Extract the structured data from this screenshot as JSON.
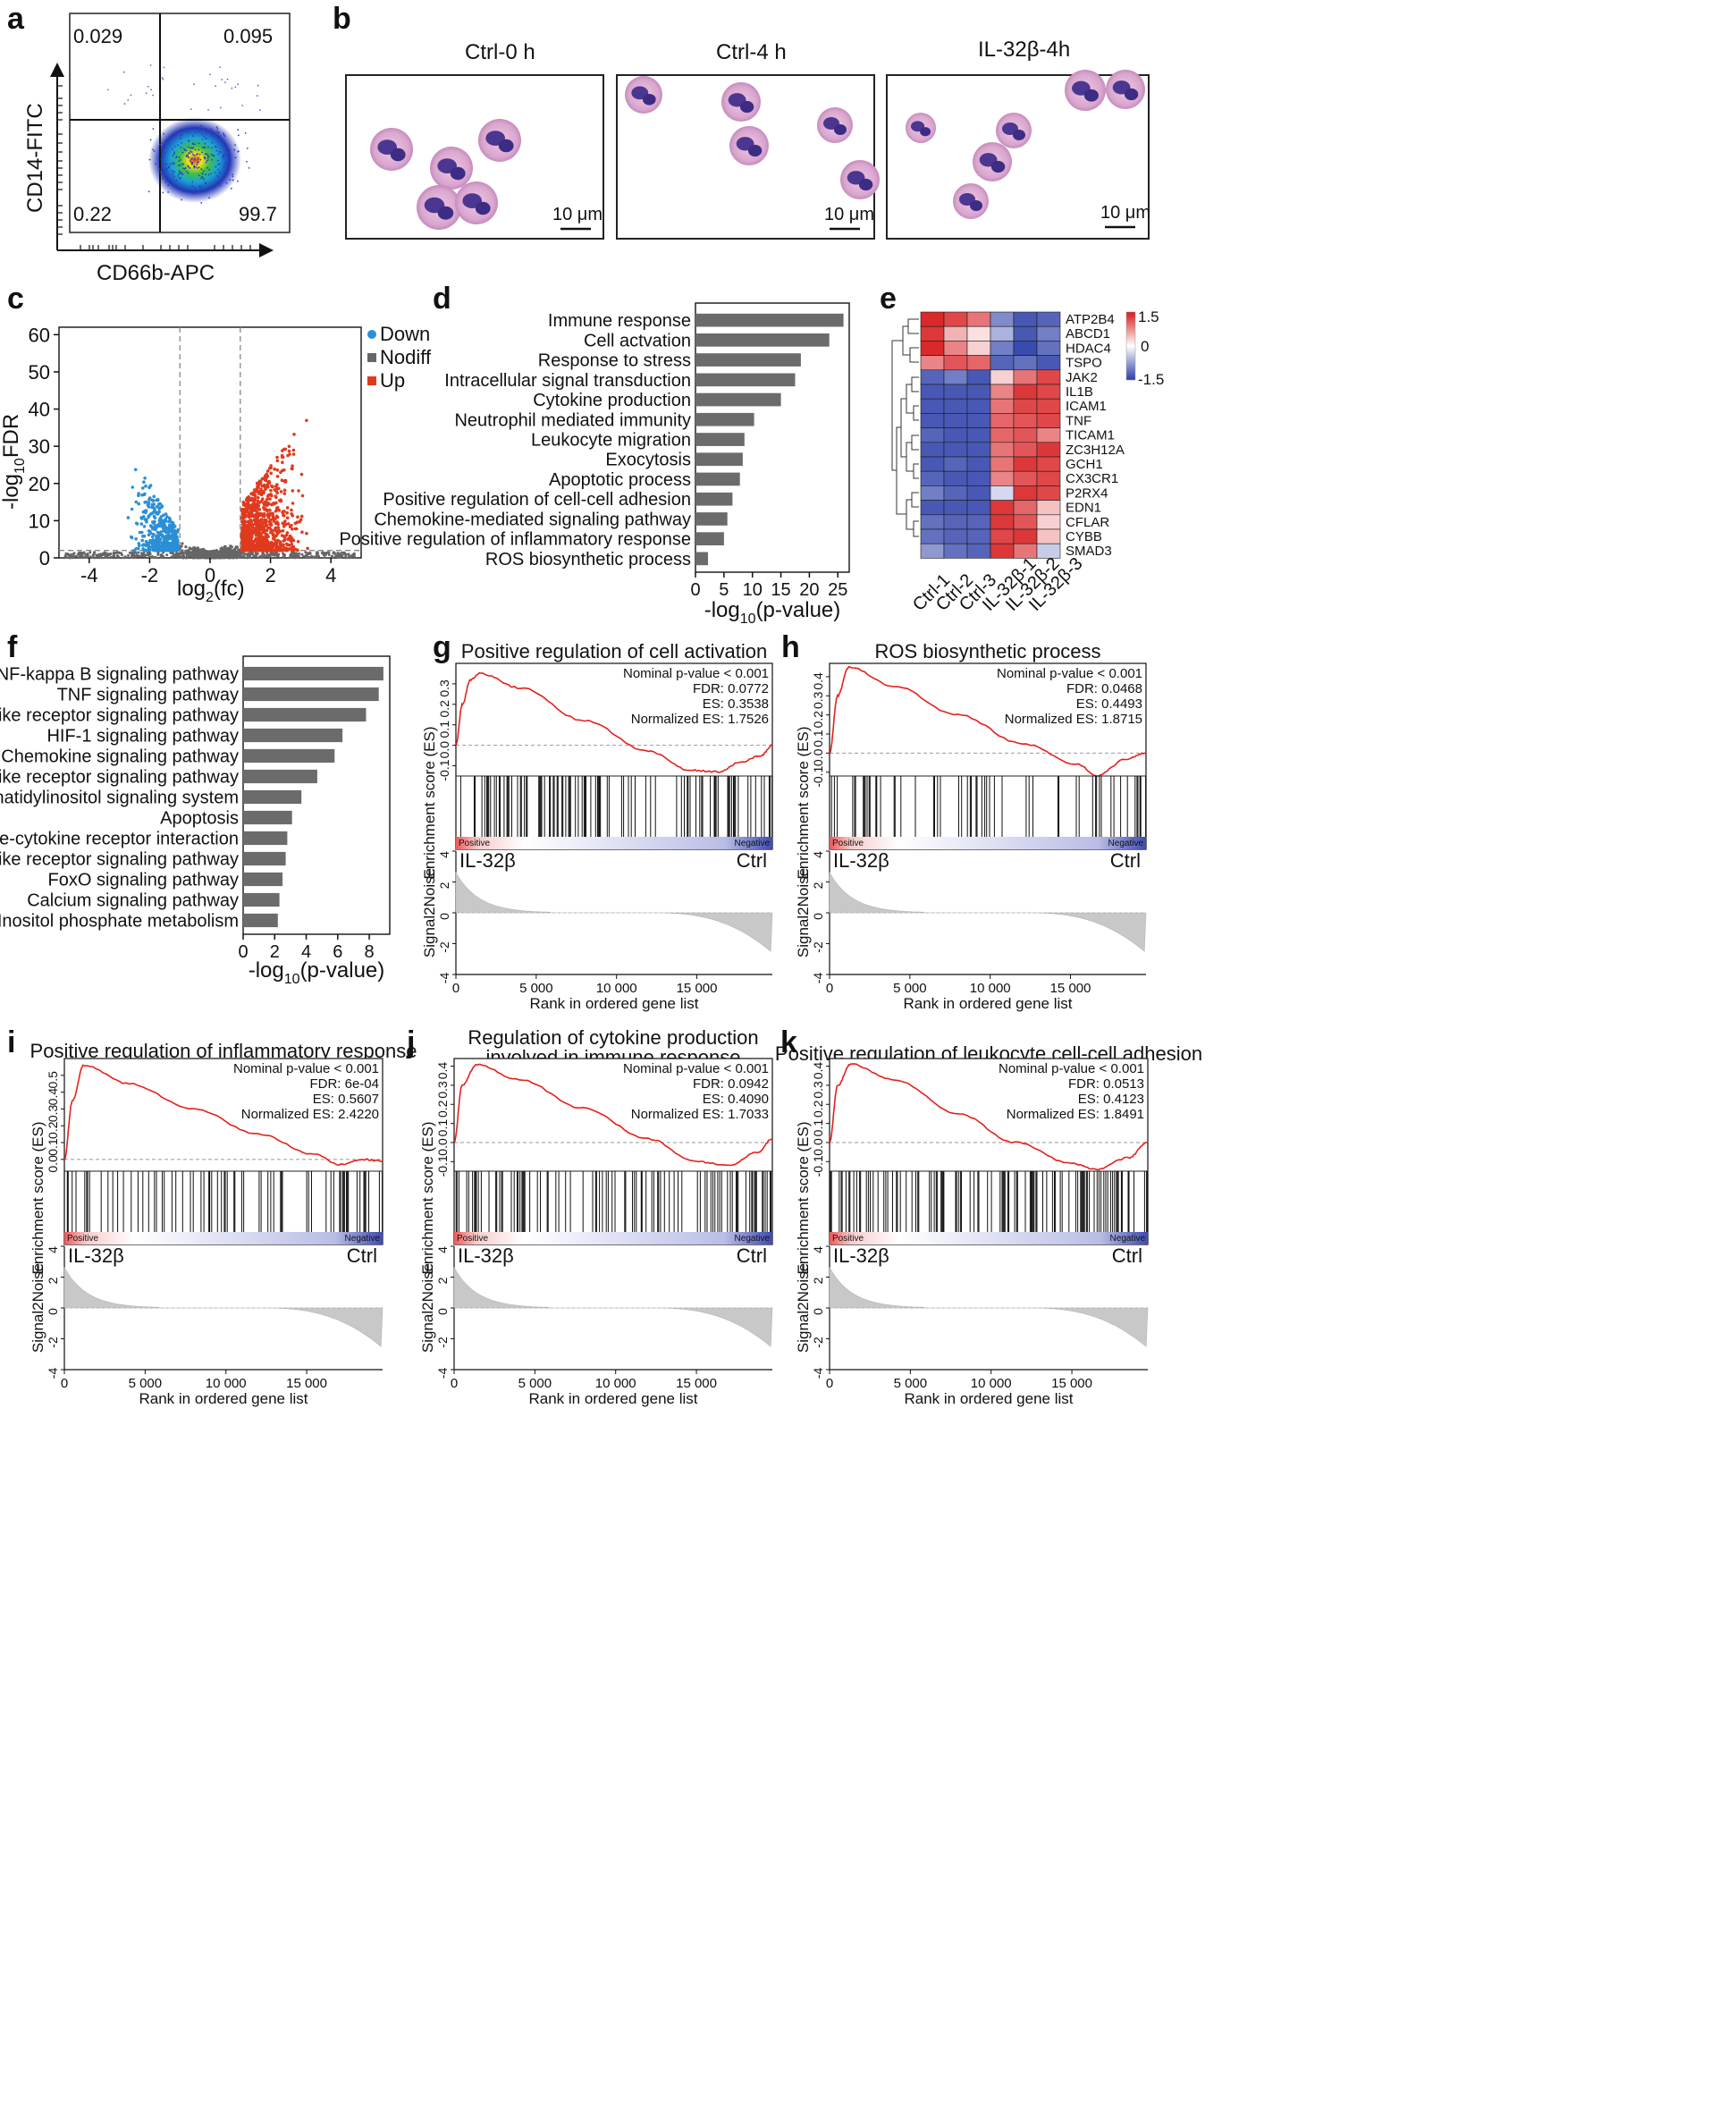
{
  "panels": {
    "a": "a",
    "b": "b",
    "c": "c",
    "d": "d",
    "e": "e",
    "f": "f",
    "g": "g",
    "h": "h",
    "i": "i",
    "j": "j",
    "k": "k"
  },
  "flow": {
    "quadrants": {
      "ul": "0.029",
      "ur": "0.095",
      "ll": "0.22",
      "lr": "99.7"
    },
    "xlabel": "CD66b-APC",
    "ylabel": "CD14-FITC"
  },
  "micro": [
    {
      "title": "Ctrl-0 h",
      "scale": "10 μm"
    },
    {
      "title": "Ctrl-4 h",
      "scale": "10 μm"
    },
    {
      "title": "IL-32β-4h",
      "scale": "10 μm"
    }
  ],
  "colors": {
    "down": "#2b8fd6",
    "up": "#e03a1e",
    "nodiff": "#666666",
    "bar": "#6b6b6b",
    "es": "#e4211c",
    "heat_high": "#d7191c",
    "heat_low": "#2c3ea8"
  },
  "volcano": {
    "legend": [
      {
        "label": "Down",
        "color": "#2b8fd6"
      },
      {
        "label": "Nodiff",
        "color": "#666666"
      },
      {
        "label": "Up",
        "color": "#e03a1e"
      }
    ],
    "xlabel": "log",
    "xlabel_sub": "2",
    "xlabel_tail": "(fc)",
    "ylabel": "-log",
    "ylabel_sub": "10",
    "ylabel_tail": "FDR",
    "xticks": [
      "-4",
      "-2",
      "0",
      "2",
      "4"
    ],
    "yticks": [
      "0",
      "10",
      "20",
      "30",
      "40",
      "50",
      "60"
    ]
  },
  "chart_data": [
    {
      "type": "scatter",
      "title": "",
      "xlabel": "log2(fc)",
      "ylabel": "-log10FDR",
      "xlim": [
        -5,
        5
      ],
      "ylim": [
        0,
        62
      ],
      "thresholds": {
        "fc": [
          -1,
          1
        ],
        "fdr": 2
      },
      "series": [
        {
          "name": "Down",
          "region": {
            "x": [
              -4.2,
              -1
            ],
            "y": [
              0,
              21
            ]
          }
        },
        {
          "name": "Nodiff",
          "region": {
            "x": [
              -5,
              5
            ],
            "y": [
              0,
              9
            ]
          }
        },
        {
          "name": "Up",
          "region": {
            "x": [
              1,
              5
            ],
            "y": [
              0,
              57
            ]
          }
        }
      ]
    },
    {
      "type": "bar",
      "orientation": "horizontal",
      "xlabel": "-log10(p-value)",
      "xlabel_parts": {
        "a": "-log",
        "sub": "10",
        "b": "(p-value)"
      },
      "xlim": [
        0,
        27
      ],
      "xticks": [
        "0",
        "5",
        "10",
        "15",
        "20",
        "25"
      ],
      "categories": [
        "Immune response",
        "Cell actvation",
        "Response to stress",
        "Intracellular signal transduction",
        "Cytokine production",
        "Neutrophil mediated immunity",
        "Leukocyte migration",
        "Exocytosis",
        "Apoptotic process",
        "Positive regulation of cell-cell adhesion",
        "Chemokine-mediated signaling pathway",
        "Positive regulation of inflammatory response",
        "ROS biosynthetic process"
      ],
      "values": [
        26,
        23.5,
        18.5,
        17.5,
        15,
        10.3,
        8.6,
        8.3,
        7.8,
        6.5,
        5.6,
        5,
        2.2
      ]
    },
    {
      "type": "heatmap",
      "columns": [
        "Ctrl-1",
        "Ctrl-2",
        "Ctrl-3",
        "IL-32β-1",
        "IL-32β-2",
        "IL-32β-3"
      ],
      "rows": [
        "ATP2B4",
        "ABCD1",
        "HDAC4",
        "TSPO",
        "JAK2",
        "IL1B",
        "ICAM1",
        "TNF",
        "TICAM1",
        "ZC3H12A",
        "GCH1",
        "CX3CR1",
        "P2RX4",
        "EDN1",
        "CFLAR",
        "CYBB",
        "SMAD3"
      ],
      "scale": {
        "max": "1.5",
        "mid": "0",
        "min": "-1.5"
      },
      "values": [
        [
          1.4,
          1.2,
          0.9,
          -0.9,
          -1.3,
          -1.2
        ],
        [
          1.3,
          0.5,
          0.2,
          -0.6,
          -1.3,
          -1.0
        ],
        [
          1.4,
          0.8,
          0.3,
          -1.0,
          -1.4,
          -1.1
        ],
        [
          0.8,
          1.1,
          1.0,
          -1.2,
          -1.1,
          -1.3
        ],
        [
          -1.2,
          -1.0,
          -1.3,
          0.3,
          0.9,
          1.2
        ],
        [
          -1.3,
          -1.3,
          -1.3,
          0.8,
          1.3,
          1.2
        ],
        [
          -1.3,
          -1.3,
          -1.3,
          0.9,
          1.2,
          1.2
        ],
        [
          -1.3,
          -1.3,
          -1.3,
          1.0,
          1.1,
          1.2
        ],
        [
          -1.2,
          -1.3,
          -1.3,
          1.0,
          1.1,
          0.8
        ],
        [
          -1.3,
          -1.3,
          -1.3,
          0.9,
          1.1,
          1.3
        ],
        [
          -1.3,
          -1.2,
          -1.3,
          0.9,
          1.3,
          1.2
        ],
        [
          -1.2,
          -1.3,
          -1.3,
          0.8,
          1.1,
          1.2
        ],
        [
          -1.0,
          -1.2,
          -1.3,
          -0.3,
          1.3,
          1.2
        ],
        [
          -1.3,
          -1.3,
          -1.3,
          1.3,
          1.0,
          0.4
        ],
        [
          -1.1,
          -1.2,
          -1.2,
          1.3,
          1.1,
          0.3
        ],
        [
          -1.1,
          -1.2,
          -1.2,
          1.2,
          1.3,
          0.4
        ],
        [
          -0.8,
          -1.1,
          -1.2,
          1.3,
          0.9,
          -0.4
        ]
      ]
    },
    {
      "type": "bar",
      "orientation": "horizontal",
      "xlabel": "-log10(p-value)",
      "xlabel_parts": {
        "a": "-log",
        "sub": "10",
        "b": "(p-value)"
      },
      "xlim": [
        0,
        9.3
      ],
      "xticks": [
        "0",
        "2",
        "4",
        "6",
        "8"
      ],
      "categories": [
        "NF-kappa B signaling pathway",
        "TNF signaling pathway",
        "NOD-like receptor signaling pathway",
        "HIF-1 signaling pathway",
        "Chemokine signaling pathway",
        "Toll-like receptor signaling pathway",
        "Phosphatidylinositol signaling system",
        "Apoptosis",
        "Cytokine-cytokine receptor interaction",
        "RIG-I-like receptor signaling pathway",
        "FoxO signaling pathway",
        "Calcium signaling pathway",
        "Inositol phosphate metabolism"
      ],
      "values": [
        8.9,
        8.6,
        7.8,
        6.3,
        5.8,
        4.7,
        3.7,
        3.1,
        2.8,
        2.7,
        2.5,
        2.3,
        2.2
      ]
    },
    {
      "type": "line",
      "panel": "g",
      "title": "Positive regulation of cell activation",
      "title2": "",
      "stats": [
        "Nominal p-value < 0.001",
        "FDR: 0.0772",
        "ES: 0.3538",
        "Normalized ES: 1.7526"
      ],
      "ylim": [
        -0.15,
        0.4
      ],
      "yticks": [
        "-0.1",
        "0.0",
        "0.1",
        "0.2",
        "0.3"
      ],
      "es": [
        [
          0,
          0.0
        ],
        [
          400,
          0.2
        ],
        [
          900,
          0.32
        ],
        [
          1500,
          0.35
        ],
        [
          4000,
          0.28
        ],
        [
          8000,
          0.12
        ],
        [
          12000,
          -0.03
        ],
        [
          14500,
          -0.12
        ],
        [
          16300,
          -0.13
        ],
        [
          17800,
          -0.08
        ],
        [
          19000,
          -0.05
        ],
        [
          19700,
          0.0
        ]
      ],
      "ticks_density": 0.55
    },
    {
      "type": "line",
      "panel": "h",
      "title": "ROS biosynthetic process",
      "title2": "",
      "stats": [
        "Nominal p-value < 0.001",
        "FDR: 0.0468",
        "ES: 0.4493",
        "Normalized ES: 1.8715"
      ],
      "ylim": [
        -0.12,
        0.47
      ],
      "yticks": [
        "-0.1",
        "0.0",
        "0.1",
        "0.2",
        "0.3",
        "0.4"
      ],
      "es": [
        [
          0,
          0.0
        ],
        [
          500,
          0.3
        ],
        [
          1200,
          0.45
        ],
        [
          4000,
          0.35
        ],
        [
          8000,
          0.2
        ],
        [
          12000,
          0.05
        ],
        [
          15500,
          -0.06
        ],
        [
          16600,
          -0.12
        ],
        [
          18500,
          -0.03
        ],
        [
          19700,
          0.0
        ]
      ],
      "ticks_density": 0.3
    },
    {
      "type": "line",
      "panel": "i",
      "title": "Positive regulation of inflammatory response",
      "title2": "",
      "stats": [
        "Nominal p-value < 0.001",
        "FDR: 6e-04",
        "ES: 0.5607",
        "Normalized ES: 2.4220"
      ],
      "ylim": [
        -0.07,
        0.6
      ],
      "yticks": [
        "0.0",
        "0.1",
        "0.2",
        "0.3",
        "0.4",
        "0.5"
      ],
      "es": [
        [
          0,
          0.0
        ],
        [
          500,
          0.35
        ],
        [
          1200,
          0.56
        ],
        [
          4000,
          0.45
        ],
        [
          8000,
          0.3
        ],
        [
          12000,
          0.15
        ],
        [
          15500,
          0.03
        ],
        [
          17000,
          -0.03
        ],
        [
          18500,
          0.0
        ],
        [
          19700,
          -0.01
        ]
      ],
      "ticks_density": 0.3
    },
    {
      "type": "line",
      "panel": "j",
      "title": "Regulation of cytokine production",
      "title2": "involved in immune response",
      "stats": [
        "Nominal p-value < 0.001",
        "FDR: 0.0942",
        "ES: 0.4090",
        "Normalized ES: 1.7033"
      ],
      "ylim": [
        -0.15,
        0.44
      ],
      "yticks": [
        "-0.1",
        "0.0",
        "0.1",
        "0.2",
        "0.3",
        "0.4"
      ],
      "es": [
        [
          0,
          0.0
        ],
        [
          500,
          0.3
        ],
        [
          1400,
          0.41
        ],
        [
          4000,
          0.33
        ],
        [
          8000,
          0.18
        ],
        [
          12000,
          0.02
        ],
        [
          15000,
          -0.1
        ],
        [
          17000,
          -0.12
        ],
        [
          18800,
          -0.05
        ],
        [
          19700,
          0.02
        ]
      ],
      "ticks_density": 0.4
    },
    {
      "type": "line",
      "panel": "k",
      "title": "Positive regulation of leukocyte cell-cell adhesion",
      "title2": "",
      "stats": [
        "Nominal p-value < 0.001",
        "FDR: 0.0513",
        "ES: 0.4123",
        "Normalized ES: 1.8491"
      ],
      "ylim": [
        -0.15,
        0.44
      ],
      "yticks": [
        "-0.1",
        "0.0",
        "0.1",
        "0.2",
        "0.3",
        "0.4"
      ],
      "es": [
        [
          0,
          0.0
        ],
        [
          500,
          0.3
        ],
        [
          1300,
          0.41
        ],
        [
          4000,
          0.33
        ],
        [
          8000,
          0.15
        ],
        [
          11500,
          0.0
        ],
        [
          15000,
          -0.11
        ],
        [
          16500,
          -0.14
        ],
        [
          18500,
          -0.08
        ],
        [
          19700,
          0.0
        ]
      ],
      "ticks_density": 0.6
    }
  ],
  "gsea_common": {
    "ylabel_es": "Enrichment score (ES)",
    "ylabel_sn": "Signal2Noise",
    "xlabel": "Rank in ordered gene list",
    "xticks": [
      "0",
      "5 000",
      "10 000",
      "15 000"
    ],
    "sn_yticks": [
      "4",
      "2",
      "0",
      "-2",
      "-4"
    ],
    "left": "IL-32β",
    "right": "Ctrl",
    "pos": "Positive",
    "neg": "Negative"
  }
}
